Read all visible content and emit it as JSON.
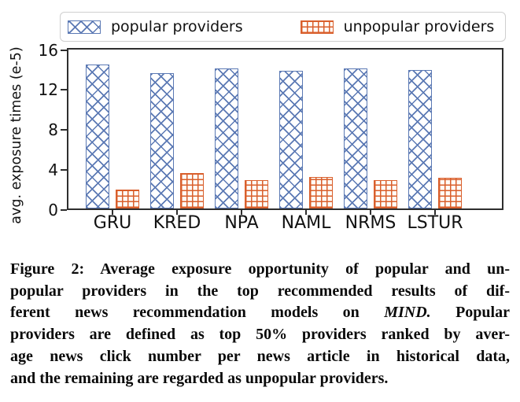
{
  "legend": {
    "items": [
      {
        "label": "popular providers",
        "color": "#5B79B4",
        "hatch": "cross-diagonal"
      },
      {
        "label": "unpopular providers",
        "color": "#D95F2C",
        "hatch": "grid"
      }
    ]
  },
  "chart_data": {
    "type": "bar",
    "title": "",
    "xlabel": "",
    "ylabel": "avg. exposure times (e-5)",
    "categories": [
      "GRU",
      "KRED",
      "NPA",
      "NAML",
      "NRMS",
      "LSTUR"
    ],
    "series": [
      {
        "name": "popular providers",
        "values": [
          14.7,
          13.8,
          14.3,
          14.0,
          14.3,
          14.1
        ],
        "color": "#5B79B4",
        "hatch": "xx"
      },
      {
        "name": "unpopular providers",
        "values": [
          1.9,
          3.6,
          2.9,
          3.2,
          2.9,
          3.1
        ],
        "color": "#D95F2C",
        "hatch": "++"
      }
    ],
    "ylim": [
      0,
      16.2
    ],
    "yticks": [
      0,
      4,
      8,
      12,
      16
    ],
    "grid": false,
    "legend_position": "top"
  },
  "caption": {
    "lines": [
      {
        "text": "Figure 2: Average exposure opportunity of popular and un-"
      },
      {
        "text": "popular providers in the top recommended results of dif-"
      },
      {
        "pre": "ferent news recommendation models on ",
        "italic": "MIND.",
        "post": " Popular"
      },
      {
        "text": "providers are defined as top 50% providers ranked by aver-"
      },
      {
        "text": "age news click number per news article in historical data,"
      },
      {
        "text": "and the remaining are regarded as unpopular providers.",
        "last": true
      }
    ]
  }
}
